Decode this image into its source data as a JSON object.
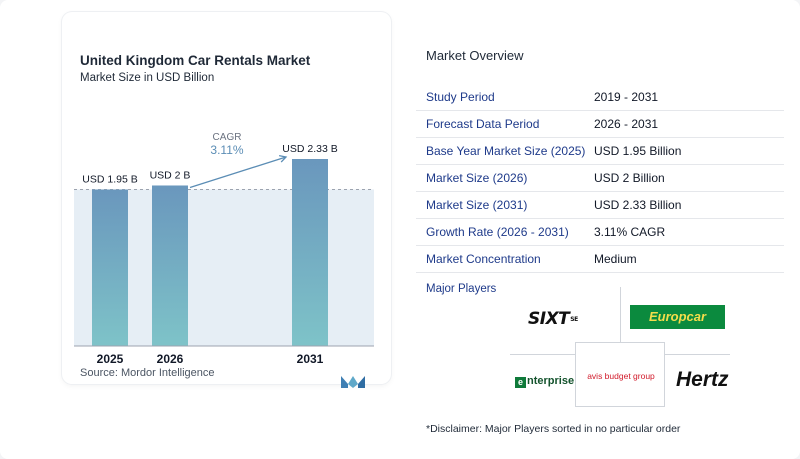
{
  "chart": {
    "title": "United Kingdom Car Rentals Market",
    "subtitle": "Market Size in USD Billion",
    "source": "Source:  Mordor Intelligence",
    "cagr_label": "CAGR",
    "cagr_value": "3.11%"
  },
  "chart_data": {
    "type": "bar",
    "categories": [
      "2025",
      "2026",
      "2031"
    ],
    "values": [
      1.95,
      2.0,
      2.33
    ],
    "data_labels": [
      "USD 1.95 B",
      "USD 2 B",
      "USD 2.33 B"
    ],
    "title": "United Kingdom Car Rentals Market",
    "subtitle": "Market Size in USD Billion",
    "xlabel": "",
    "ylabel": "",
    "ylim": [
      0,
      2.33
    ],
    "grid": false,
    "annotation": "CAGR 3.11%",
    "colors": {
      "bar_top": "#6a97bd",
      "bar_bottom": "#7ec3c8",
      "band": "#e6eef5",
      "arrow": "#5b8db5"
    }
  },
  "overview": {
    "title": "Market Overview",
    "rows": [
      {
        "label": "Study Period",
        "value": "2019 - 2031"
      },
      {
        "label": "Forecast Data Period",
        "value": "2026 - 2031"
      },
      {
        "label": "Base Year Market Size (2025)",
        "value": "USD 1.95 Billion"
      },
      {
        "label": "Market Size (2026)",
        "value": "USD 2 Billion"
      },
      {
        "label": "Market Size (2031)",
        "value": "USD 2.33 Billion"
      },
      {
        "label": "Growth Rate (2026 - 2031)",
        "value": "3.11% CAGR"
      },
      {
        "label": "Market Concentration",
        "value": "Medium"
      }
    ]
  },
  "players": {
    "title": "Major Players",
    "sixt": "SIXT",
    "sixt_suffix": "SE",
    "europcar": "Europcar",
    "enterprise": "nterprise",
    "enterprise_mark": "e",
    "avis": "avis budget group",
    "hertz": "Hertz",
    "disclaimer": "*Disclaimer: Major Players sorted in no particular order"
  },
  "icons": {
    "brand": "mordor-intelligence-logo-icon",
    "arrow": "cagr-arrow-icon"
  }
}
